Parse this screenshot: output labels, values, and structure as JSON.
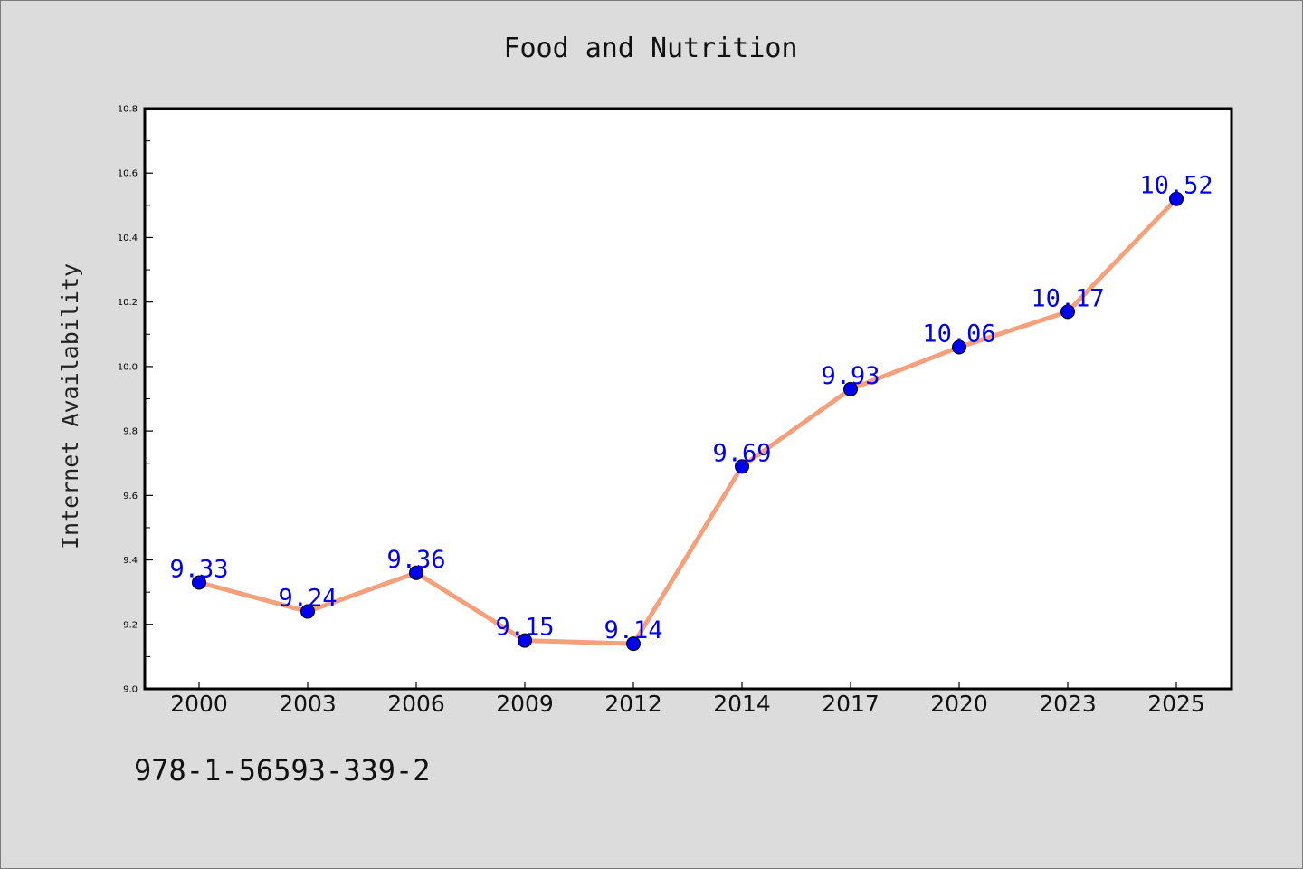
{
  "chart_data": {
    "type": "line",
    "title": "Food and Nutrition",
    "xlabel": "",
    "ylabel": "Internet Availability",
    "categories": [
      "2000",
      "2003",
      "2006",
      "2009",
      "2012",
      "2014",
      "2017",
      "2020",
      "2023",
      "2025"
    ],
    "series": [
      {
        "values": [
          9.33,
          9.24,
          9.36,
          9.15,
          9.14,
          9.69,
          9.93,
          10.06,
          10.17,
          10.52
        ],
        "line_color": "#f4a07c",
        "marker_color": "#0000ee"
      }
    ],
    "data_labels": [
      "9.33",
      "9.24",
      "9.36",
      "9.15",
      "9.14",
      "9.69",
      "9.93",
      "10.06",
      "10.17",
      "10.52"
    ],
    "ylim": [
      9.0,
      10.8
    ],
    "y_ticks": [
      "9.0",
      "9.2",
      "9.4",
      "9.6",
      "9.8",
      "10.0",
      "10.2",
      "10.4",
      "10.6",
      "10.8"
    ],
    "grid": false,
    "label_color": "#0000ee"
  },
  "footer": {
    "isbn": "978-1-56593-339-2"
  }
}
